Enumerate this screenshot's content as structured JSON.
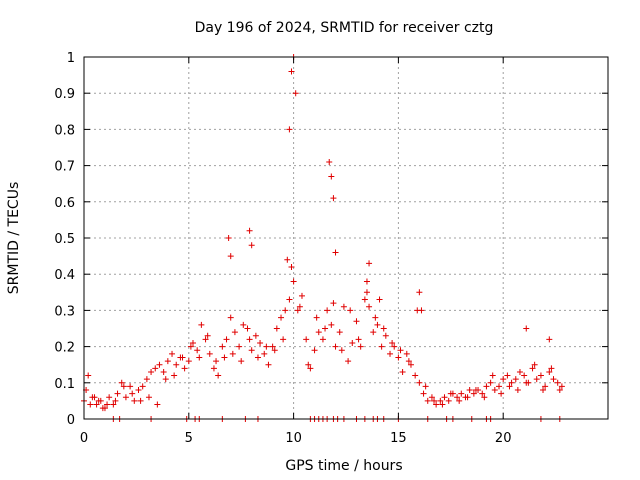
{
  "chart_data": {
    "type": "scatter",
    "title": "Day 196 of 2024, SRMTID for receiver cztg",
    "xlabel": "GPS time / hours",
    "ylabel": "SRMTID / TECUs",
    "xlim": [
      0,
      25
    ],
    "ylim": [
      0,
      1
    ],
    "xticks": [
      0,
      5,
      10,
      15,
      20
    ],
    "xtick_labels": [
      "0",
      "5",
      "10",
      "15",
      "20"
    ],
    "yticks": [
      0,
      0.1,
      0.2,
      0.3,
      0.4,
      0.5,
      0.6,
      0.7,
      0.8,
      0.9,
      1
    ],
    "ytick_labels": [
      "0",
      "0.1",
      "0.2",
      "0.3",
      "0.4",
      "0.5",
      "0.6",
      "0.7",
      "0.8",
      "0.9",
      "1"
    ],
    "grid": true,
    "marker": "+",
    "marker_color": "#e00000",
    "series": [
      {
        "name": "SRMTID",
        "x": [
          0.0,
          0.2,
          0.4,
          0.6,
          0.8,
          1.0,
          1.2,
          1.4,
          1.6,
          1.8,
          2.0,
          2.2,
          2.4,
          2.6,
          2.8,
          3.0,
          3.2,
          3.4,
          3.6,
          3.8,
          4.0,
          4.2,
          4.4,
          4.6,
          4.8,
          5.0,
          5.2,
          5.4,
          5.6,
          5.8,
          6.0,
          6.2,
          6.4,
          6.6,
          6.8,
          7.0,
          7.2,
          7.4,
          7.6,
          7.8,
          8.0,
          8.2,
          8.4,
          8.6,
          8.8,
          9.0,
          9.2,
          9.4,
          9.6,
          9.8,
          10.0,
          10.2,
          10.4,
          10.6,
          10.8,
          11.0,
          11.2,
          11.4,
          11.6,
          11.8,
          12.0,
          12.2,
          12.4,
          12.6,
          12.8,
          13.0,
          13.2,
          13.4,
          13.6,
          13.8,
          14.0,
          14.2,
          14.4,
          14.6,
          14.8,
          15.0,
          15.2,
          15.4,
          15.6,
          15.8,
          16.0,
          16.2,
          16.4,
          16.6,
          16.8,
          17.0,
          17.2,
          17.4,
          17.6,
          17.8,
          18.0,
          18.2,
          18.4,
          18.6,
          18.8,
          19.0,
          19.2,
          19.4,
          19.6,
          19.8,
          20.0,
          20.2,
          20.4,
          20.6,
          20.8,
          21.0,
          21.2,
          21.4,
          21.6,
          21.8,
          22.0,
          22.2,
          22.4,
          22.6,
          22.8,
          0.1,
          0.3,
          0.5,
          0.7,
          0.9,
          1.1,
          1.5,
          1.9,
          2.3,
          2.7,
          3.1,
          3.5,
          3.9,
          4.3,
          4.7,
          5.1,
          5.5,
          5.9,
          6.3,
          6.7,
          7.1,
          7.5,
          7.9,
          8.3,
          8.7,
          9.1,
          9.5,
          9.9,
          10.3,
          10.7,
          11.1,
          11.5,
          11.9,
          12.3,
          12.7,
          13.1,
          13.5,
          13.9,
          14.3,
          14.7,
          15.1,
          15.5,
          15.9,
          16.3,
          16.7,
          17.1,
          17.5,
          17.9,
          18.3,
          18.7,
          19.1,
          19.5,
          19.9,
          20.3,
          20.7,
          21.1,
          21.5,
          21.9,
          22.3,
          22.7,
          6.9,
          7.0,
          7.9,
          8.0,
          9.8,
          9.9,
          10.0,
          10.1,
          11.7,
          11.8,
          11.9,
          13.5,
          13.6,
          16.0,
          16.1,
          21.1,
          22.2,
          9.7,
          12.0,
          14.1,
          1.4,
          1.7,
          3.2,
          4.9,
          5.3,
          5.5,
          6.6,
          7.7,
          8.3,
          10.8,
          11.0,
          11.2,
          11.4,
          11.6,
          11.9,
          12.1,
          12.4,
          13.0,
          13.4,
          13.8,
          14.0,
          14.3,
          15.0,
          16.4,
          17.3,
          17.6,
          18.5,
          19.2,
          19.4,
          21.8,
          22.7
        ],
        "y": [
          0.05,
          0.12,
          0.06,
          0.04,
          0.05,
          0.03,
          0.06,
          0.04,
          0.07,
          0.1,
          0.06,
          0.09,
          0.05,
          0.08,
          0.09,
          0.11,
          0.13,
          0.14,
          0.15,
          0.13,
          0.16,
          0.18,
          0.15,
          0.17,
          0.14,
          0.16,
          0.21,
          0.19,
          0.26,
          0.22,
          0.18,
          0.14,
          0.12,
          0.2,
          0.22,
          0.28,
          0.24,
          0.2,
          0.26,
          0.25,
          0.19,
          0.23,
          0.21,
          0.18,
          0.15,
          0.2,
          0.25,
          0.28,
          0.3,
          0.33,
          0.38,
          0.3,
          0.34,
          0.22,
          0.14,
          0.19,
          0.24,
          0.22,
          0.3,
          0.26,
          0.2,
          0.24,
          0.31,
          0.16,
          0.21,
          0.27,
          0.2,
          0.33,
          0.31,
          0.24,
          0.26,
          0.2,
          0.23,
          0.18,
          0.2,
          0.17,
          0.13,
          0.18,
          0.15,
          0.12,
          0.1,
          0.07,
          0.05,
          0.06,
          0.04,
          0.05,
          0.06,
          0.05,
          0.07,
          0.06,
          0.07,
          0.06,
          0.08,
          0.07,
          0.08,
          0.07,
          0.09,
          0.1,
          0.08,
          0.09,
          0.11,
          0.12,
          0.1,
          0.11,
          0.13,
          0.12,
          0.1,
          0.14,
          0.11,
          0.12,
          0.09,
          0.13,
          0.11,
          0.1,
          0.09,
          0.08,
          0.04,
          0.06,
          0.05,
          0.03,
          0.04,
          0.05,
          0.09,
          0.07,
          0.05,
          0.06,
          0.04,
          0.11,
          0.12,
          0.17,
          0.2,
          0.17,
          0.23,
          0.16,
          0.17,
          0.18,
          0.16,
          0.22,
          0.17,
          0.2,
          0.19,
          0.22,
          0.42,
          0.31,
          0.15,
          0.28,
          0.25,
          0.32,
          0.19,
          0.3,
          0.22,
          0.35,
          0.28,
          0.25,
          0.21,
          0.19,
          0.16,
          0.3,
          0.09,
          0.05,
          0.04,
          0.07,
          0.05,
          0.06,
          0.08,
          0.06,
          0.12,
          0.07,
          0.09,
          0.08,
          0.1,
          0.15,
          0.08,
          0.14,
          0.08,
          0.5,
          0.45,
          0.52,
          0.48,
          0.8,
          0.96,
          1.0,
          0.9,
          0.71,
          0.67,
          0.61,
          0.38,
          0.43,
          0.35,
          0.3,
          0.25,
          0.22,
          0.44,
          0.46,
          0.33,
          0.0,
          0.0,
          0.0,
          0.0,
          0.0,
          0.0,
          0.0,
          0.0,
          0.0,
          0.0,
          0.0,
          0.0,
          0.0,
          0.0,
          0.0,
          0.0,
          0.0,
          0.0,
          0.0,
          0.0,
          0.0,
          0.0,
          0.0,
          0.0,
          0.0,
          0.0,
          0.0,
          0.0,
          0.0,
          0.0,
          0.0
        ]
      }
    ]
  }
}
